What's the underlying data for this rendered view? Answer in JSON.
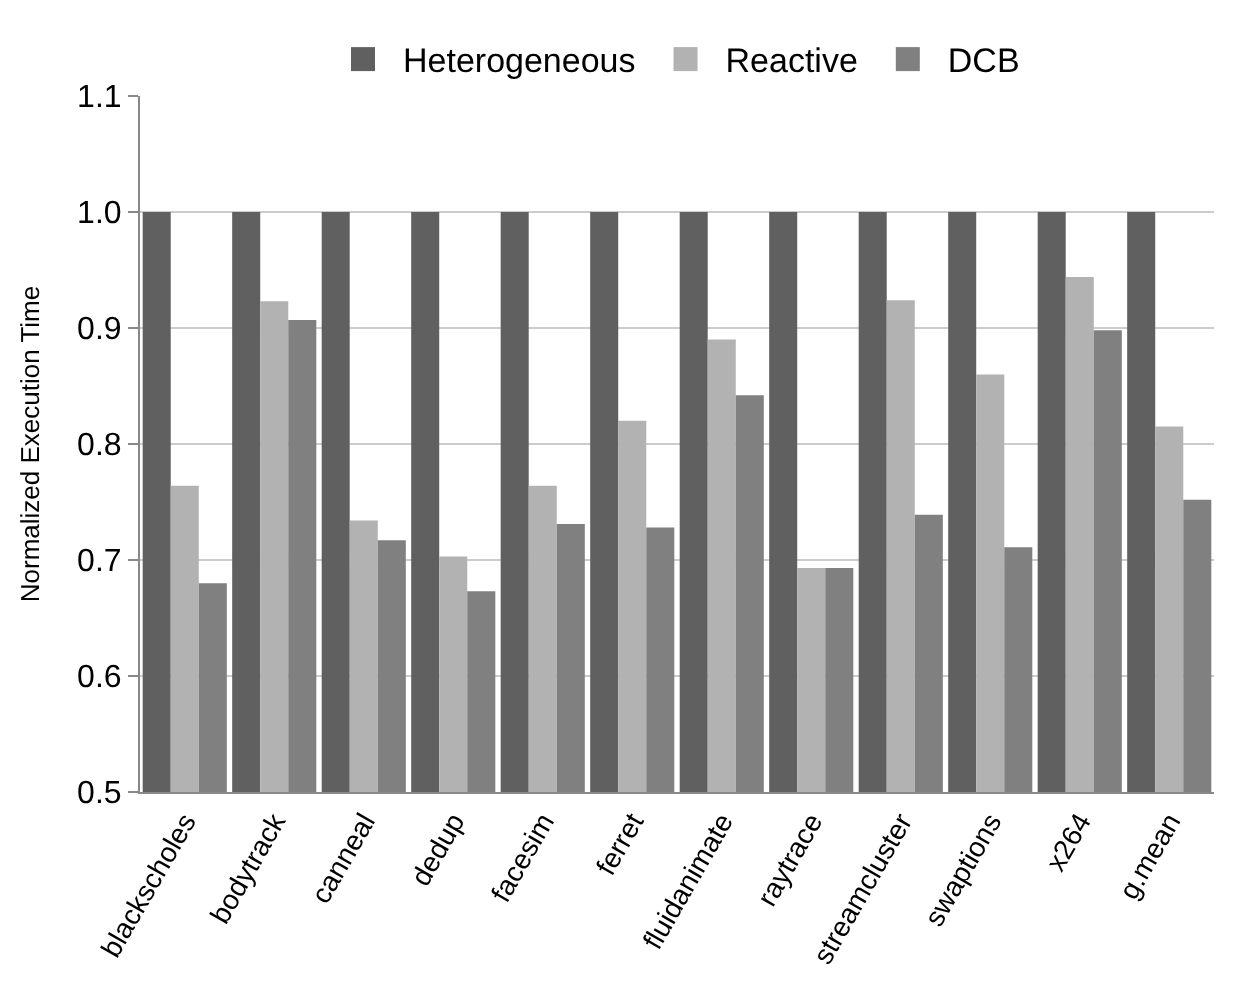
{
  "chart_data": {
    "type": "bar",
    "ylabel": "Normalized Execution Time",
    "categories": [
      "blackscholes",
      "bodytrack",
      "canneal",
      "dedup",
      "facesim",
      "ferret",
      "fluidanimate",
      "raytrace",
      "streamcluster",
      "swaptions",
      "x264",
      "g.mean"
    ],
    "series": [
      {
        "name": "Heterogeneous",
        "color": "#606060",
        "values": [
          1.0,
          1.0,
          1.0,
          1.0,
          1.0,
          1.0,
          1.0,
          1.0,
          1.0,
          1.0,
          1.0,
          1.0
        ]
      },
      {
        "name": "Reactive",
        "color": "#b2b2b2",
        "values": [
          0.764,
          0.923,
          0.734,
          0.703,
          0.764,
          0.82,
          0.89,
          0.693,
          0.924,
          0.86,
          0.944,
          0.815
        ]
      },
      {
        "name": "DCB",
        "color": "#808080",
        "values": [
          0.68,
          0.907,
          0.717,
          0.673,
          0.731,
          0.728,
          0.842,
          0.693,
          0.739,
          0.711,
          0.898,
          0.752
        ]
      }
    ],
    "ylim": [
      0.5,
      1.1
    ],
    "yticks": [
      {
        "value": 0.5,
        "label": "0.5"
      },
      {
        "value": 0.6,
        "label": "0.6"
      },
      {
        "value": 0.7,
        "label": "0.7"
      },
      {
        "value": 0.8,
        "label": "0.8"
      },
      {
        "value": 0.9,
        "label": "0.9"
      },
      {
        "value": 1.0,
        "label": "1.0"
      },
      {
        "value": 1.1,
        "label": "1.1"
      }
    ],
    "grid": "y",
    "legend": "top"
  }
}
